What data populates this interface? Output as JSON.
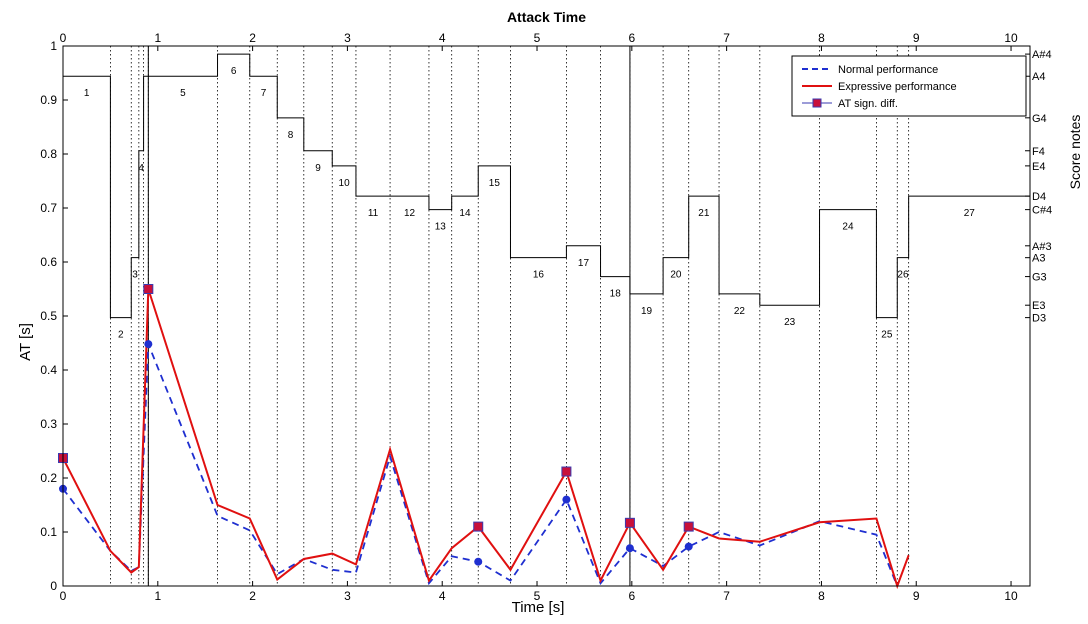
{
  "chart_data": {
    "type": "line",
    "title": "Attack Time",
    "xlabel": "Time [s]",
    "ylabel": "AT [s]",
    "y2label": "Score notes",
    "xlim": [
      0,
      10.2
    ],
    "ylim": [
      0,
      1
    ],
    "xticks": [
      0,
      1,
      2,
      3,
      4,
      5,
      6,
      7,
      8,
      9,
      10
    ],
    "yticks": [
      0,
      0.1,
      0.2,
      0.3,
      0.4,
      0.5,
      0.6,
      0.7,
      0.8,
      0.9,
      1
    ],
    "xtick_labels": [
      "0",
      "1",
      "2",
      "3",
      "4",
      "5",
      "6",
      "7",
      "8",
      "9",
      "10"
    ],
    "ytick_labels": [
      "0",
      "0.1",
      "0.2",
      "0.3",
      "0.4",
      "0.5",
      "0.6",
      "0.7",
      "0.8",
      "0.9",
      "1"
    ],
    "grid": false,
    "legend_position": "top-right",
    "legend": [
      {
        "name": "Normal performance",
        "color": "#1f2fd0",
        "style": "dashed"
      },
      {
        "name": "Expressive performance",
        "color": "#e01010",
        "style": "solid"
      },
      {
        "name": "AT sign. diff.",
        "color": "#3a3ab0",
        "marker": "square",
        "marker_color": "#c8103a"
      }
    ],
    "note_labels": [
      {
        "name": "A#4",
        "y": 0.985
      },
      {
        "name": "A4",
        "y": 0.944
      },
      {
        "name": "G4",
        "y": 0.867
      },
      {
        "name": "F4",
        "y": 0.806
      },
      {
        "name": "E4",
        "y": 0.778
      },
      {
        "name": "D4",
        "y": 0.722
      },
      {
        "name": "C#4",
        "y": 0.697
      },
      {
        "name": "A#3",
        "y": 0.63
      },
      {
        "name": "A3",
        "y": 0.608
      },
      {
        "name": "G3",
        "y": 0.573
      },
      {
        "name": "E3",
        "y": 0.52
      },
      {
        "name": "D3",
        "y": 0.497
      }
    ],
    "note_boundaries": [
      0,
      0.5,
      0.72,
      0.8,
      0.85,
      0.9,
      1.63,
      1.97,
      2.26,
      2.54,
      2.84,
      3.09,
      3.45,
      3.86,
      4.1,
      4.38,
      4.72,
      5.31,
      5.67,
      5.98,
      6.33,
      6.6,
      6.92,
      7.35,
      7.98,
      8.58,
      8.8,
      8.92
    ],
    "strong_boundaries": [
      0.9,
      5.98
    ],
    "score_notes": [
      {
        "n": "1",
        "start": 0,
        "end": 0.5,
        "level": 0.944
      },
      {
        "n": "2",
        "start": 0.5,
        "end": 0.72,
        "level": 0.497
      },
      {
        "n": "3",
        "start": 0.72,
        "end": 0.8,
        "level": 0.608
      },
      {
        "n": "4",
        "start": 0.8,
        "end": 0.85,
        "level": 0.806
      },
      {
        "n": "5",
        "start": 0.9,
        "end": 1.63,
        "level": 0.944
      },
      {
        "n": "6",
        "start": 1.63,
        "end": 1.97,
        "level": 0.985
      },
      {
        "n": "7",
        "start": 1.97,
        "end": 2.26,
        "level": 0.944
      },
      {
        "n": "8",
        "start": 2.26,
        "end": 2.54,
        "level": 0.867
      },
      {
        "n": "9",
        "start": 2.54,
        "end": 2.84,
        "level": 0.806
      },
      {
        "n": "10",
        "start": 2.84,
        "end": 3.09,
        "level": 0.778
      },
      {
        "n": "11",
        "start": 3.09,
        "end": 3.45,
        "level": 0.722
      },
      {
        "n": "12",
        "start": 3.45,
        "end": 3.86,
        "level": 0.722
      },
      {
        "n": "13",
        "start": 3.86,
        "end": 4.1,
        "level": 0.697
      },
      {
        "n": "14",
        "start": 4.1,
        "end": 4.38,
        "level": 0.722
      },
      {
        "n": "15",
        "start": 4.38,
        "end": 4.72,
        "level": 0.778
      },
      {
        "n": "16",
        "start": 4.72,
        "end": 5.31,
        "level": 0.608
      },
      {
        "n": "17",
        "start": 5.31,
        "end": 5.67,
        "level": 0.63
      },
      {
        "n": "18",
        "start": 5.67,
        "end": 5.98,
        "level": 0.573
      },
      {
        "n": "19",
        "start": 5.98,
        "end": 6.33,
        "level": 0.541
      },
      {
        "n": "20",
        "start": 6.33,
        "end": 6.6,
        "level": 0.608
      },
      {
        "n": "21",
        "start": 6.6,
        "end": 6.92,
        "level": 0.722
      },
      {
        "n": "22",
        "start": 6.92,
        "end": 7.35,
        "level": 0.541
      },
      {
        "n": "23",
        "start": 7.35,
        "end": 7.98,
        "level": 0.52
      },
      {
        "n": "24",
        "start": 7.98,
        "end": 8.58,
        "level": 0.697
      },
      {
        "n": "25",
        "start": 8.58,
        "end": 8.8,
        "level": 0.497
      },
      {
        "n": "26",
        "start": 8.8,
        "end": 8.92,
        "level": 0.608
      },
      {
        "n": "27",
        "start": 8.92,
        "end": 10.2,
        "level": 0.722
      }
    ],
    "series": [
      {
        "name": "Normal performance",
        "x": [
          0,
          0.5,
          0.72,
          0.8,
          0.9,
          1.63,
          1.97,
          2.26,
          2.54,
          2.84,
          3.09,
          3.45,
          3.86,
          4.1,
          4.38,
          4.72,
          5.31,
          5.67,
          5.98,
          6.33,
          6.6,
          6.92,
          7.35,
          7.98,
          8.58,
          8.8
        ],
        "y": [
          0.18,
          0.065,
          0.028,
          0.035,
          0.448,
          0.13,
          0.103,
          0.022,
          0.05,
          0.03,
          0.025,
          0.24,
          0.005,
          0.055,
          0.045,
          0.01,
          0.16,
          0.005,
          0.07,
          0.037,
          0.073,
          0.1,
          0.075,
          0.12,
          0.095,
          0.0
        ]
      },
      {
        "name": "Expressive performance",
        "x": [
          0,
          0.5,
          0.72,
          0.8,
          0.9,
          1.63,
          1.97,
          2.26,
          2.54,
          2.84,
          3.09,
          3.45,
          3.86,
          4.1,
          4.38,
          4.72,
          5.31,
          5.67,
          5.98,
          6.33,
          6.6,
          6.92,
          7.35,
          7.98,
          8.58,
          8.8,
          8.92
        ],
        "y": [
          0.237,
          0.065,
          0.025,
          0.035,
          0.55,
          0.15,
          0.125,
          0.012,
          0.05,
          0.06,
          0.04,
          0.253,
          0.01,
          0.07,
          0.11,
          0.03,
          0.212,
          0.01,
          0.117,
          0.03,
          0.11,
          0.088,
          0.082,
          0.118,
          0.125,
          0.0,
          0.057
        ]
      }
    ],
    "sig_diff": {
      "x": [
        0,
        0.9,
        4.38,
        5.31,
        5.98,
        6.6
      ],
      "normal_y": [
        0.18,
        0.448,
        0.045,
        0.16,
        0.07,
        0.073
      ],
      "expressive_y": [
        0.237,
        0.55,
        0.11,
        0.212,
        0.117,
        0.11
      ]
    }
  }
}
